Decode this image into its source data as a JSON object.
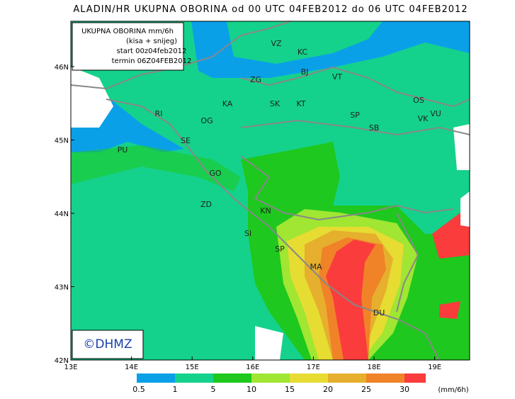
{
  "title": "ALADIN/HR UKUPNA OBORINA od 00 UTC 04FEB2012 do 06 UTC 04FEB2012",
  "info_box": [
    "UKUPNA OBORINA mm/6h",
    "(kisa + snijeg)",
    "start 00z04feb2012",
    "termin 06Z04FEB2012"
  ],
  "cities": [
    "VZ",
    "KC",
    "BJ",
    "ZG",
    "VT",
    "KA",
    "SK",
    "KT",
    "OS",
    "RI",
    "OG",
    "SP",
    "VK",
    "VU",
    "SB",
    "SE",
    "PU",
    "GO",
    "ZD",
    "KN",
    "SI",
    "SP",
    "MA",
    "DU"
  ],
  "lon_ticks": [
    "13E",
    "14E",
    "15E",
    "16E",
    "17E",
    "18E",
    "19E"
  ],
  "lat_ticks": [
    "46N",
    "45N",
    "44N",
    "43N",
    "42N"
  ],
  "colorbar": {
    "labels": [
      "0.5",
      "1",
      "5",
      "10",
      "15",
      "20",
      "25",
      "30"
    ],
    "unit": "(mm/6h)"
  },
  "logo": "©DHMZ"
}
